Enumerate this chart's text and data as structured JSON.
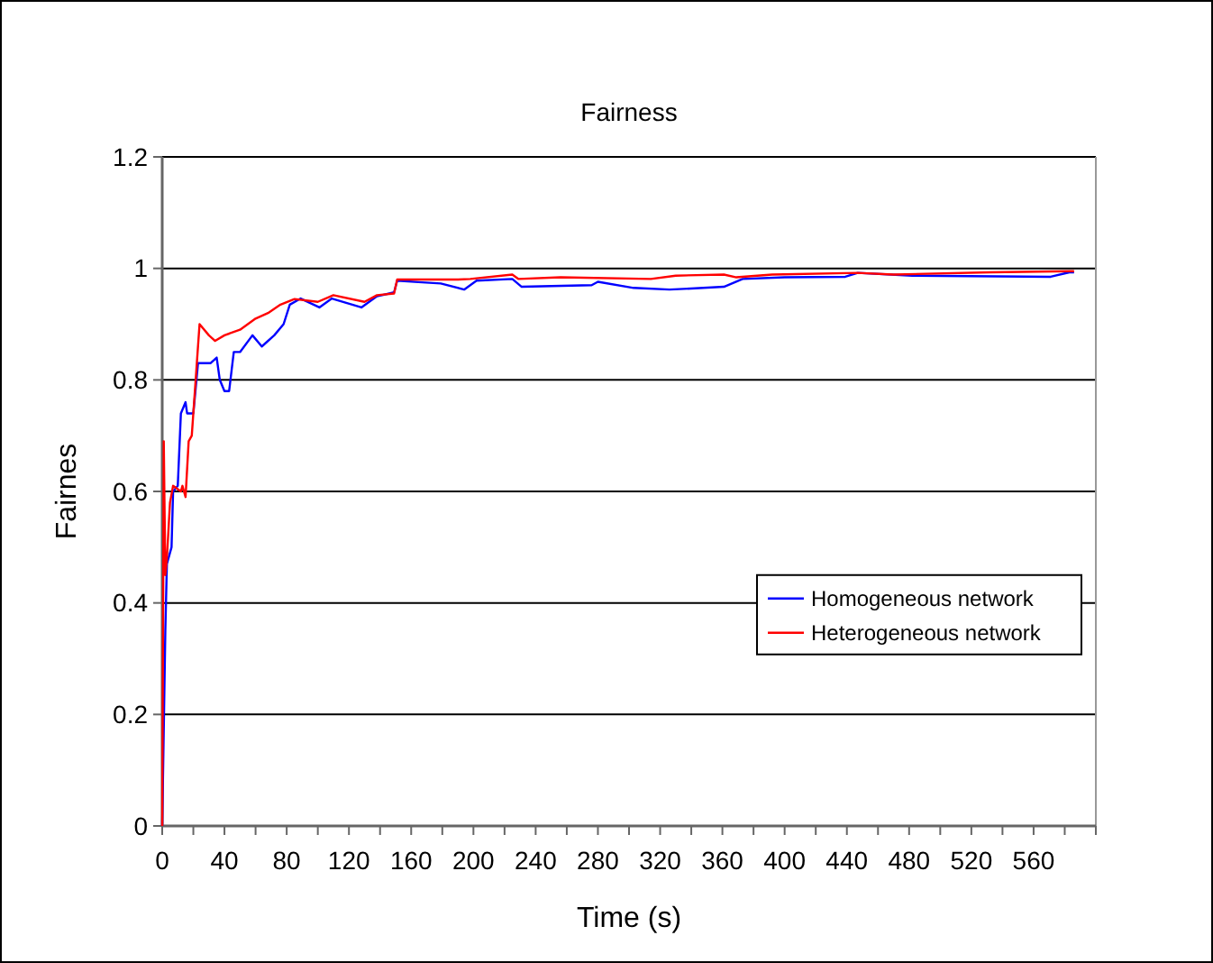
{
  "chart_data": {
    "type": "line",
    "title": "Fairness",
    "xlabel": "Time (s)",
    "ylabel": "Fairnes",
    "xlim": [
      0,
      600
    ],
    "xticks": [
      0,
      {
        "value": 20,
        "label": null
      },
      40,
      {
        "value": 60,
        "label": null
      },
      80,
      {
        "value": 100,
        "label": null
      },
      120,
      {
        "value": 140,
        "label": null
      },
      160,
      {
        "value": 180,
        "label": null
      },
      200,
      {
        "value": 220,
        "label": null
      },
      240,
      {
        "value": 260,
        "label": null
      },
      280,
      {
        "value": 300,
        "label": null
      },
      320,
      {
        "value": 340,
        "label": null
      },
      360,
      {
        "value": 380,
        "label": null
      },
      400,
      {
        "value": 420,
        "label": null
      },
      440,
      {
        "value": 460,
        "label": null
      },
      480,
      {
        "value": 500,
        "label": null
      },
      520,
      {
        "value": 540,
        "label": null
      },
      560,
      {
        "value": 580,
        "label": null
      },
      {
        "value": 600,
        "label": null
      }
    ],
    "ylim": [
      0,
      1.2
    ],
    "yticks": [
      0,
      0.2,
      0.4,
      0.6,
      0.8,
      1,
      1.2
    ],
    "grid": "y",
    "legend": "bottom right",
    "marker": "none",
    "line_style": "solid",
    "series": [
      {
        "name": "Homogeneous network",
        "color": "#0000ff",
        "x": [
          0,
          2,
          3,
          6,
          7,
          10,
          12,
          15,
          16,
          20,
          23,
          27,
          31,
          35,
          37,
          40,
          43,
          46,
          50,
          58,
          64,
          72,
          78,
          82,
          89,
          101,
          109,
          128,
          138,
          149,
          151,
          167,
          179,
          194,
          202,
          225,
          231,
          276,
          280,
          303,
          326,
          361,
          373,
          400,
          439,
          447,
          482,
          571,
          583,
          586
        ],
        "values": [
          0,
          0.35,
          0.47,
          0.5,
          0.6,
          0.61,
          0.74,
          0.76,
          0.74,
          0.74,
          0.83,
          0.83,
          0.83,
          0.84,
          0.8,
          0.78,
          0.78,
          0.85,
          0.85,
          0.88,
          0.86,
          0.88,
          0.9,
          0.935,
          0.946,
          0.93,
          0.946,
          0.93,
          0.95,
          0.957,
          0.978,
          0.975,
          0.973,
          0.962,
          0.978,
          0.981,
          0.967,
          0.97,
          0.976,
          0.965,
          0.962,
          0.967,
          0.981,
          0.984,
          0.985,
          0.992,
          0.987,
          0.985,
          0.993,
          0.993
        ]
      },
      {
        "name": "Heterogeneous network",
        "color": "#ff0000",
        "x": [
          0,
          1,
          2,
          3,
          5,
          7,
          12,
          13,
          15,
          17,
          19,
          22,
          24,
          30,
          34,
          40,
          50,
          60,
          68,
          76,
          85,
          100,
          110,
          130,
          138,
          149,
          151,
          190,
          198,
          225,
          229,
          256,
          314,
          330,
          361,
          369,
          392,
          447,
          470,
          532,
          583,
          586
        ],
        "values": [
          0,
          0.69,
          0.45,
          0.48,
          0.58,
          0.61,
          0.6,
          0.61,
          0.59,
          0.69,
          0.7,
          0.82,
          0.9,
          0.88,
          0.87,
          0.88,
          0.89,
          0.91,
          0.92,
          0.935,
          0.945,
          0.94,
          0.952,
          0.94,
          0.952,
          0.955,
          0.98,
          0.98,
          0.981,
          0.989,
          0.981,
          0.984,
          0.981,
          0.987,
          0.989,
          0.984,
          0.989,
          0.992,
          0.989,
          0.993,
          0.995,
          0.995
        ]
      }
    ]
  }
}
